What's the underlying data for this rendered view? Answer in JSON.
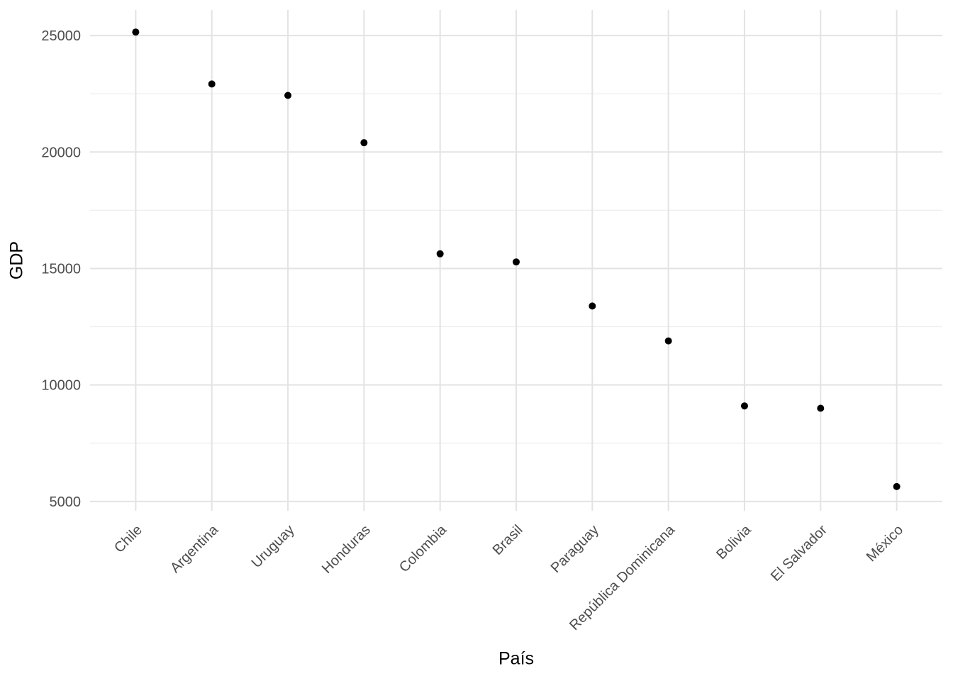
{
  "chart_data": {
    "type": "scatter",
    "title": "",
    "xlabel": "País",
    "ylabel": "GDP",
    "categories": [
      "Chile",
      "Argentina",
      "Uruguay",
      "Honduras",
      "Colombia",
      "Brasil",
      "Paraguay",
      "República Dominicana",
      "Bolivia",
      "El Salvador",
      "México"
    ],
    "values": [
      25150,
      22920,
      22430,
      20400,
      15630,
      15280,
      13390,
      11890,
      9100,
      9000,
      5640
    ],
    "y_major_ticks": [
      5000,
      10000,
      15000,
      20000,
      25000
    ],
    "y_minor_ticks": [
      7500,
      12500,
      17500,
      22500
    ],
    "y_tick_labels": [
      "5000",
      "10000",
      "15000",
      "20000",
      "25000"
    ],
    "ylim": [
      4600,
      26100
    ],
    "grid": "major-and-minor",
    "legend_position": "none",
    "x_label_rotation_deg": 45,
    "colors": {
      "point": "#000000",
      "grid_major": "#E3E3E3",
      "grid_minor": "#EDEDED",
      "tick_label": "#4D4D4D",
      "axis_title": "#000000",
      "background": "#FFFFFF"
    }
  }
}
